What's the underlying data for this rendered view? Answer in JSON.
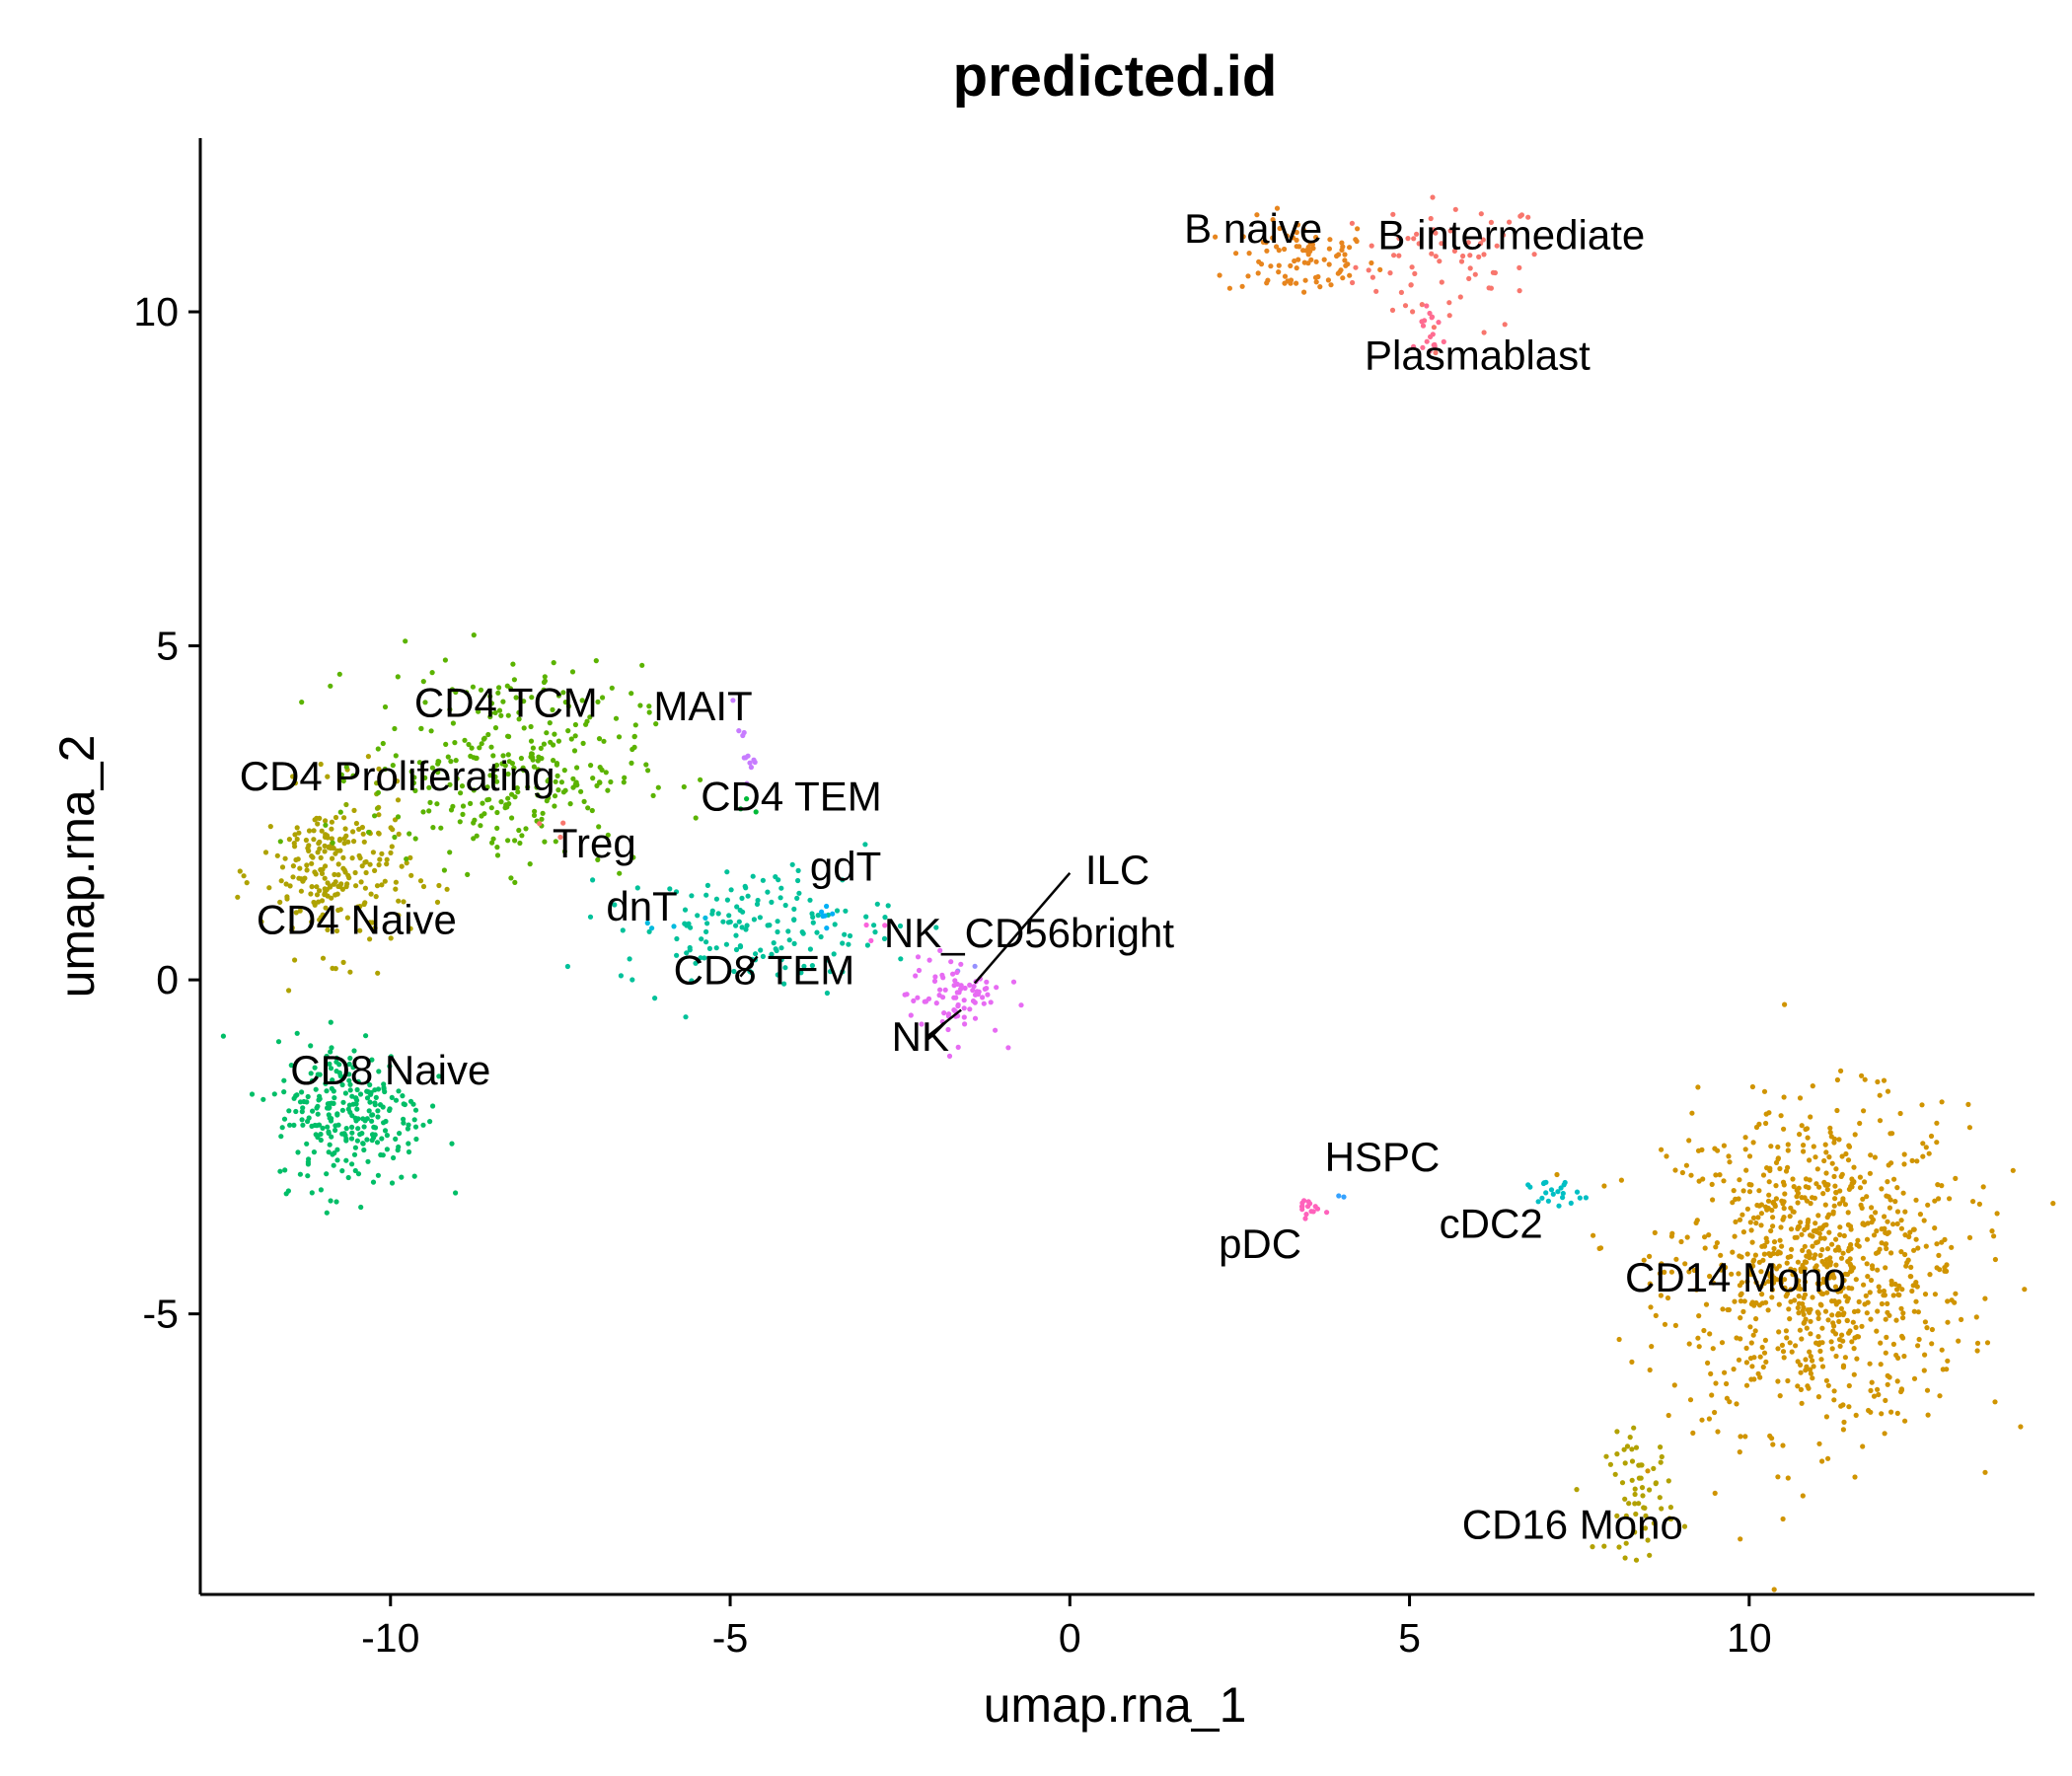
{
  "chart_data": {
    "type": "scatter",
    "title": "predicted.id",
    "xlabel": "umap.rna_1",
    "ylabel": "umap.rna_2",
    "xlim": [
      -12.8,
      14.2
    ],
    "ylim": [
      -9.2,
      12.6
    ],
    "xticks": [
      {
        "value": -10,
        "label": "-10"
      },
      {
        "value": -5,
        "label": "-5"
      },
      {
        "value": 0,
        "label": "0"
      },
      {
        "value": 5,
        "label": "5"
      },
      {
        "value": 10,
        "label": "10"
      }
    ],
    "yticks": [
      {
        "value": -5,
        "label": "-5"
      },
      {
        "value": 0,
        "label": "0"
      },
      {
        "value": 5,
        "label": "5"
      },
      {
        "value": 10,
        "label": "10"
      }
    ],
    "grid": false,
    "legend": "none",
    "clusters": [
      {
        "name": "B intermediate",
        "color": "#F8766D",
        "center": [
          5.6,
          10.7
        ],
        "spread": [
          0.7,
          0.5
        ],
        "n": 70
      },
      {
        "name": "B naive",
        "color": "#E7851E",
        "center": [
          3.4,
          10.8
        ],
        "spread": [
          0.55,
          0.3
        ],
        "n": 90
      },
      {
        "name": "CD14 Mono",
        "color": "#D09400",
        "center": [
          11.0,
          -4.3
        ],
        "spread": [
          1.1,
          1.2
        ],
        "n": 900
      },
      {
        "name": "CD16 Mono",
        "color": "#B2A100",
        "center": [
          8.4,
          -7.7
        ],
        "spread": [
          0.25,
          0.45
        ],
        "n": 60
      },
      {
        "name": "CD4 Naive",
        "color": "#AEA200",
        "center": [
          -10.8,
          1.6
        ],
        "spread": [
          0.55,
          0.6
        ],
        "n": 230
      },
      {
        "name": "CD4 Proliferating",
        "color": "#8BAB00",
        "center": [
          -10.2,
          2.8
        ],
        "spread": [
          0.3,
          0.2
        ],
        "n": 4
      },
      {
        "name": "CD4 TCM",
        "color": "#5BB300",
        "center": [
          -8.3,
          3.2
        ],
        "spread": [
          1.0,
          0.75
        ],
        "n": 300
      },
      {
        "name": "CD4 TEM",
        "color": "#00BA38",
        "center": [
          -4.7,
          2.6
        ],
        "spread": [
          0.1,
          0.1
        ],
        "n": 3
      },
      {
        "name": "CD8 Naive",
        "color": "#00BE67",
        "center": [
          -10.6,
          -2.0
        ],
        "spread": [
          0.55,
          0.55
        ],
        "n": 260
      },
      {
        "name": "CD8 TEM",
        "color": "#00C19A",
        "center": [
          -4.6,
          0.8
        ],
        "spread": [
          1.0,
          0.45
        ],
        "n": 150
      },
      {
        "name": "cDC2",
        "color": "#00BFC4",
        "center": [
          7.1,
          -3.2
        ],
        "spread": [
          0.2,
          0.1
        ],
        "n": 22
      },
      {
        "name": "dnT",
        "color": "#00BADE",
        "center": [
          -5.9,
          1.0
        ],
        "spread": [
          0.3,
          0.2
        ],
        "n": 4
      },
      {
        "name": "gdT",
        "color": "#00B0F6",
        "center": [
          -3.6,
          1.0
        ],
        "spread": [
          0.08,
          0.1
        ],
        "n": 6
      },
      {
        "name": "HSPC",
        "color": "#35A2FF",
        "center": [
          3.95,
          -3.25
        ],
        "spread": [
          0.04,
          0.03
        ],
        "n": 2
      },
      {
        "name": "ILC",
        "color": "#9590FF",
        "center": [
          -1.5,
          0.1
        ],
        "spread": [
          0.1,
          0.1
        ],
        "n": 2
      },
      {
        "name": "MAIT",
        "color": "#C77CFF",
        "center": [
          -4.8,
          3.4
        ],
        "spread": [
          0.08,
          0.22
        ],
        "n": 12
      },
      {
        "name": "NK",
        "color": "#E76BF3",
        "center": [
          -1.7,
          -0.25
        ],
        "spread": [
          0.35,
          0.3
        ],
        "n": 80
      },
      {
        "name": "NK_CD56bright",
        "color": "#FA62DB",
        "center": [
          -2.9,
          0.7
        ],
        "spread": [
          0.1,
          0.1
        ],
        "n": 3
      },
      {
        "name": "pDC",
        "color": "#FF62BC",
        "center": [
          3.45,
          -3.4
        ],
        "spread": [
          0.1,
          0.08
        ],
        "n": 15
      },
      {
        "name": "Plasmablast",
        "color": "#FF6C91",
        "center": [
          5.3,
          9.7
        ],
        "spread": [
          0.12,
          0.25
        ],
        "n": 18
      },
      {
        "name": "Treg",
        "color": "#F8766D",
        "center": [
          -7.6,
          2.3
        ],
        "spread": [
          0.15,
          0.15
        ],
        "n": 3
      }
    ],
    "labels": [
      {
        "text": "B naive",
        "x": 2.7,
        "y": 11.2
      },
      {
        "text": "B intermediate",
        "x": 6.5,
        "y": 11.1
      },
      {
        "text": "Plasmablast",
        "x": 6.0,
        "y": 9.3
      },
      {
        "text": "CD4 TCM",
        "x": -8.3,
        "y": 4.1
      },
      {
        "text": "MAIT",
        "x": -5.4,
        "y": 4.05
      },
      {
        "text": "CD4 Proliferating",
        "x": -9.9,
        "y": 3.0
      },
      {
        "text": "CD4 TEM",
        "x": -4.1,
        "y": 2.7
      },
      {
        "text": "Treg",
        "x": -7.0,
        "y": 2.0
      },
      {
        "text": "gdT",
        "x": -3.3,
        "y": 1.65
      },
      {
        "text": "ILC",
        "x": 0.7,
        "y": 1.6
      },
      {
        "text": "dnT",
        "x": -6.3,
        "y": 1.05
      },
      {
        "text": "NK_CD56bright",
        "x": -0.6,
        "y": 0.65
      },
      {
        "text": "CD8 TEM",
        "x": -4.5,
        "y": 0.1
      },
      {
        "text": "CD4 Naive",
        "x": -10.5,
        "y": 0.85
      },
      {
        "text": "NK",
        "x": -2.2,
        "y": -0.9
      },
      {
        "text": "CD8 Naive",
        "x": -10.0,
        "y": -1.4
      },
      {
        "text": "HSPC",
        "x": 4.6,
        "y": -2.7
      },
      {
        "text": "pDC",
        "x": 2.8,
        "y": -4.0
      },
      {
        "text": "cDC2",
        "x": 6.2,
        "y": -3.7
      },
      {
        "text": "CD14 Mono",
        "x": 9.8,
        "y": -4.5
      },
      {
        "text": "CD16 Mono",
        "x": 7.4,
        "y": -8.2
      }
    ],
    "leaders": [
      {
        "from": [
          0.0,
          1.6
        ],
        "to": [
          -1.4,
          -0.05
        ],
        "label": "ILC"
      },
      {
        "from": [
          -1.6,
          -0.45
        ],
        "to": [
          -2.1,
          -0.85
        ],
        "label": "NK"
      },
      {
        "from": [
          -4.6,
          0.35
        ],
        "to": [
          -4.85,
          0.05
        ],
        "label": "CD8 TEM"
      }
    ]
  }
}
